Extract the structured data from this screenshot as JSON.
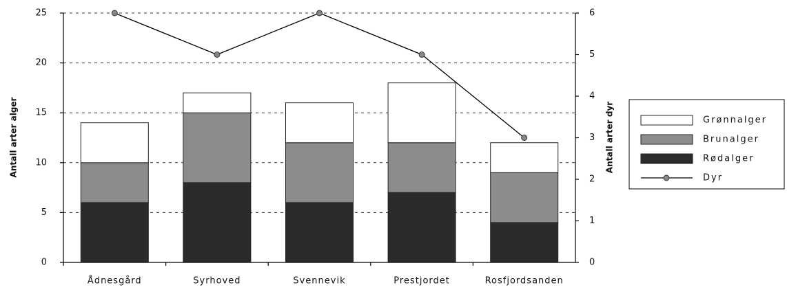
{
  "chart_data": {
    "type": "bar",
    "stacked": true,
    "categories": [
      "Ådnesgård",
      "Syrhoved",
      "Svennevik",
      "Prestjordet",
      "Rosfjordsanden"
    ],
    "ylabel": "Antall arter alger",
    "y2label": "Antall arter dyr",
    "ylim": [
      0,
      25
    ],
    "yticks": [
      0,
      5,
      10,
      15,
      20,
      25
    ],
    "y2lim": [
      0,
      6
    ],
    "y2ticks": [
      0,
      1,
      2,
      3,
      4,
      5,
      6
    ],
    "grid": true,
    "legend": "right",
    "series": [
      {
        "name": "Grønnalger",
        "color": "#ffffff",
        "values": [
          4,
          2,
          4,
          6,
          3
        ]
      },
      {
        "name": "Brunalger",
        "color": "#8c8c8c",
        "values": [
          4,
          7,
          6,
          5,
          5
        ]
      },
      {
        "name": "Rødalger",
        "color": "#2b2b2b",
        "values": [
          6,
          8,
          6,
          7,
          4
        ]
      },
      {
        "name": "Dyr",
        "type": "line",
        "axis": "y2",
        "color": "#000000",
        "values": [
          6,
          5,
          6,
          5,
          3
        ]
      }
    ]
  }
}
